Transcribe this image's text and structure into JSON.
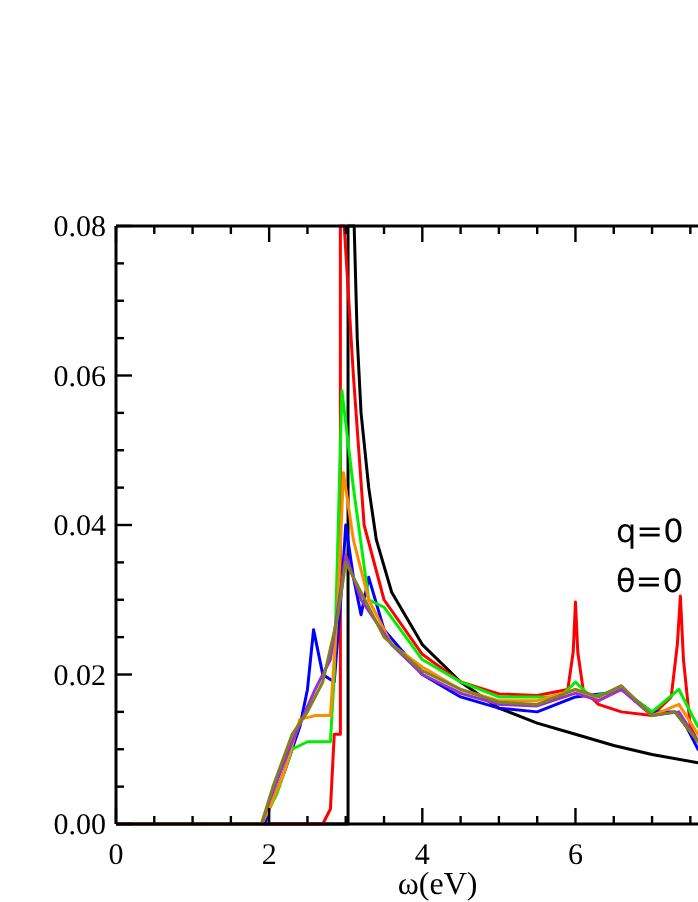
{
  "chart_data": {
    "type": "line",
    "xlabel": "ω(eV)",
    "xlim": [
      0,
      7.6
    ],
    "ylim": [
      0,
      0.08
    ],
    "xticks": [
      0,
      {
        "value": 0.5,
        "label": null
      },
      {
        "value": 1,
        "label": null
      },
      {
        "value": 1.5,
        "label": null
      },
      2,
      {
        "value": 2.5,
        "label": null
      },
      {
        "value": 3,
        "label": null
      },
      {
        "value": 3.5,
        "label": null
      },
      4,
      {
        "value": 4.5,
        "label": null
      },
      {
        "value": 5,
        "label": null
      },
      {
        "value": 5.5,
        "label": null
      },
      6,
      {
        "value": 6.5,
        "label": null
      },
      {
        "value": 7,
        "label": null
      },
      {
        "value": 7.5,
        "label": null
      }
    ],
    "yticks": [
      {
        "value": 0,
        "label": "0.00"
      },
      {
        "value": 0.005,
        "label": null
      },
      {
        "value": 0.01,
        "label": null
      },
      {
        "value": 0.015,
        "label": null
      },
      {
        "value": 0.02,
        "label": "0.02"
      },
      {
        "value": 0.025,
        "label": null
      },
      {
        "value": 0.03,
        "label": null
      },
      {
        "value": 0.035,
        "label": null
      },
      {
        "value": 0.04,
        "label": "0.04"
      },
      {
        "value": 0.045,
        "label": null
      },
      {
        "value": 0.05,
        "label": null
      },
      {
        "value": 0.055,
        "label": null
      },
      {
        "value": 0.06,
        "label": "0.06"
      },
      {
        "value": 0.065,
        "label": null
      },
      {
        "value": 0.07,
        "label": null
      },
      {
        "value": 0.075,
        "label": null
      },
      {
        "value": 0.08,
        "label": "0.08"
      }
    ],
    "grid": false,
    "line_style": "solid",
    "annotations": [
      "q=0",
      "θ=0"
    ],
    "series": [
      {
        "color": "#000000",
        "x": [
          0,
          3.03,
          3.03,
          3.11,
          3.15,
          3.2,
          3.3,
          3.4,
          3.6,
          4,
          4.5,
          5,
          5.5,
          6,
          6.5,
          7,
          7.6
        ],
        "values": [
          0,
          0,
          0.08,
          0.08,
          0.065,
          0.055,
          0.045,
          0.038,
          0.031,
          0.024,
          0.019,
          0.0155,
          0.0135,
          0.012,
          0.0105,
          0.0093,
          0.0082
        ]
      },
      {
        "color": "#ff0000",
        "x": [
          0,
          2.7,
          2.8,
          2.85,
          2.93,
          2.93,
          2.98,
          3.1,
          3.24,
          3.5,
          4,
          4.5,
          5,
          5.5,
          5.9,
          5.97,
          6.0,
          6.03,
          6.1,
          6.3,
          6.6,
          7.0,
          7.25,
          7.33,
          7.37,
          7.41,
          7.5,
          7.6
        ],
        "values": [
          0,
          0,
          0.002,
          0.012,
          0.012,
          0.08,
          0.08,
          0.06,
          0.04,
          0.03,
          0.0227,
          0.019,
          0.0174,
          0.0172,
          0.018,
          0.023,
          0.0297,
          0.023,
          0.018,
          0.016,
          0.015,
          0.0145,
          0.017,
          0.024,
          0.0305,
          0.022,
          0.013,
          0.011
        ]
      },
      {
        "color": "#0000ff",
        "x": [
          1.95,
          2.0,
          2.2,
          2.4,
          2.5,
          2.58,
          2.7,
          2.85,
          2.95,
          3.0,
          3.1,
          3.2,
          3.3,
          3.5,
          4,
          4.5,
          5,
          5.5,
          6,
          6.4,
          6.6,
          7,
          7.3,
          7.45,
          7.6
        ],
        "values": [
          0,
          0.002,
          0.007,
          0.013,
          0.018,
          0.026,
          0.02,
          0.019,
          0.032,
          0.04,
          0.033,
          0.028,
          0.033,
          0.026,
          0.02,
          0.017,
          0.0155,
          0.015,
          0.017,
          0.0175,
          0.018,
          0.015,
          0.015,
          0.013,
          0.01
        ]
      },
      {
        "color": "#00ee00",
        "x": [
          0,
          1.9,
          2.1,
          2.3,
          2.5,
          2.8,
          2.85,
          2.95,
          3.1,
          3.3,
          3.5,
          4,
          4.5,
          5,
          5.8,
          6.0,
          6.2,
          6.6,
          7.0,
          7.35,
          7.6
        ],
        "values": [
          0,
          0,
          0.004,
          0.01,
          0.011,
          0.011,
          0.02,
          0.058,
          0.045,
          0.03,
          0.029,
          0.022,
          0.019,
          0.017,
          0.017,
          0.019,
          0.017,
          0.018,
          0.015,
          0.018,
          0.013
        ]
      },
      {
        "color": "#ff8c00",
        "x": [
          0,
          1.9,
          2.0,
          2.2,
          2.4,
          2.6,
          2.8,
          2.9,
          2.97,
          3.1,
          3.3,
          3.6,
          4,
          4.5,
          5,
          5.5,
          6,
          6.3,
          6.6,
          7.0,
          7.35,
          7.6
        ],
        "values": [
          0,
          0,
          0.002,
          0.007,
          0.014,
          0.0145,
          0.0145,
          0.03,
          0.047,
          0.038,
          0.03,
          0.024,
          0.021,
          0.018,
          0.0165,
          0.0165,
          0.018,
          0.0165,
          0.018,
          0.0145,
          0.016,
          0.012
        ]
      },
      {
        "color": "#9933cc",
        "x": [
          0,
          1.9,
          2.0,
          2.3,
          2.6,
          2.8,
          3.0,
          3.2,
          3.6,
          4,
          4.5,
          5,
          5.5,
          6,
          6.3,
          6.6,
          7,
          7.35,
          7.6
        ],
        "values": [
          0,
          0,
          0.003,
          0.011,
          0.018,
          0.022,
          0.036,
          0.03,
          0.024,
          0.02,
          0.0175,
          0.016,
          0.0158,
          0.0175,
          0.0165,
          0.018,
          0.0145,
          0.015,
          0.011
        ]
      },
      {
        "color": "#808020",
        "x": [
          0,
          1.9,
          2.05,
          2.3,
          2.5,
          2.7,
          2.9,
          3.0,
          3.2,
          3.5,
          4,
          4.5,
          5,
          5.5,
          6,
          6.3,
          6.6,
          7,
          7.3,
          7.6
        ],
        "values": [
          0,
          0,
          0.005,
          0.012,
          0.015,
          0.019,
          0.028,
          0.035,
          0.031,
          0.025,
          0.0205,
          0.018,
          0.0163,
          0.016,
          0.018,
          0.017,
          0.0185,
          0.0145,
          0.015,
          0.011
        ]
      }
    ]
  }
}
